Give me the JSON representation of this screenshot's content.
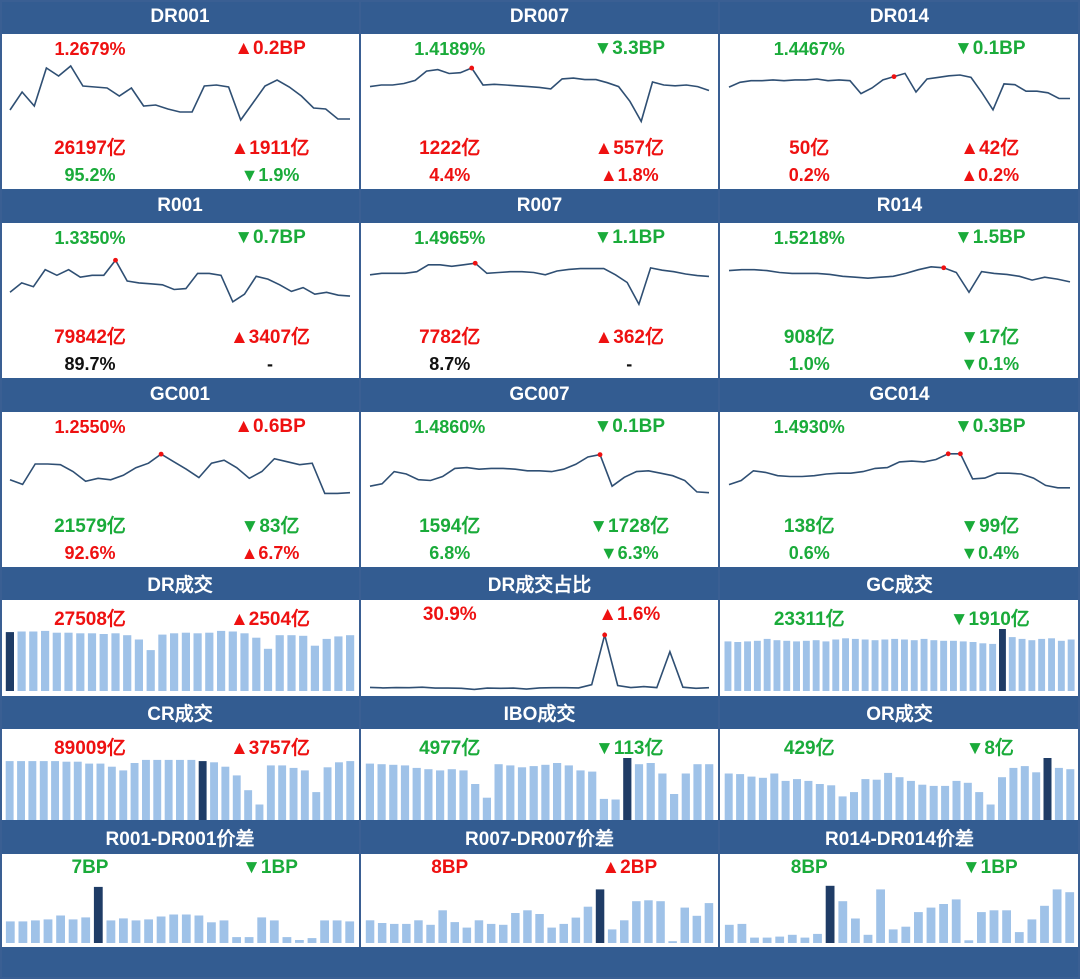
{
  "colors": {
    "header": "#335c91",
    "up": "#ee1111",
    "down": "#1aab3a",
    "line": "#2f4f73",
    "bar": "#9fc2e8",
    "bar_highlight": "#1f3c66"
  },
  "rate_panels": [
    {
      "title": "DR001",
      "rate": "1.2679%",
      "rate_color": "red",
      "rate_change": "▲0.2BP",
      "rate_change_color": "red",
      "volume": "26197亿",
      "volume_color": "red",
      "volume_change": "▲1911亿",
      "volume_change_color": "red",
      "share": "95.2%",
      "share_color": "green",
      "share_change": "▼1.9%",
      "share_change_color": "green",
      "chart_data": {
        "type": "line",
        "values": [
          1.36,
          1.45,
          1.38,
          1.57,
          1.53,
          1.58,
          1.48,
          1.475,
          1.47,
          1.43,
          1.47,
          1.38,
          1.385,
          1.365,
          1.35,
          1.35,
          1.48,
          1.485,
          1.475,
          1.31,
          1.395,
          1.48,
          1.51,
          1.475,
          1.43,
          1.37,
          1.365,
          1.315,
          1.315
        ],
        "ylim": [
          1.28,
          1.62
        ],
        "marker": null
      }
    },
    {
      "title": "DR007",
      "rate": "1.4189%",
      "rate_color": "green",
      "rate_change": "▼3.3BP",
      "rate_change_color": "green",
      "volume": "1222亿",
      "volume_color": "red",
      "volume_change": "▲557亿",
      "volume_change_color": "red",
      "share": "4.4%",
      "share_color": "red",
      "share_change": "▲1.8%",
      "share_change_color": "red",
      "chart_data": {
        "type": "line",
        "values": [
          1.535,
          1.545,
          1.545,
          1.555,
          1.575,
          1.635,
          1.645,
          1.62,
          1.625,
          1.655,
          1.545,
          1.55,
          1.545,
          1.54,
          1.535,
          1.53,
          1.52,
          1.585,
          1.59,
          1.58,
          1.58,
          1.56,
          1.535,
          1.44,
          1.31,
          1.565,
          1.545,
          1.54,
          1.545,
          1.535,
          1.51
        ],
        "ylim": [
          1.28,
          1.72
        ],
        "marker": 9
      }
    },
    {
      "title": "DR014",
      "rate": "1.4467%",
      "rate_color": "green",
      "rate_change": "▼0.1BP",
      "rate_change_color": "green",
      "volume": "50亿",
      "volume_color": "red",
      "volume_change": "▲42亿",
      "volume_change_color": "red",
      "share": "0.2%",
      "share_color": "red",
      "share_change": "▲0.2%",
      "share_change_color": "red",
      "chart_data": {
        "type": "line",
        "values": [
          1.58,
          1.61,
          1.62,
          1.62,
          1.625,
          1.62,
          1.625,
          1.625,
          1.63,
          1.62,
          1.625,
          1.62,
          1.54,
          1.575,
          1.625,
          1.645,
          1.665,
          1.55,
          1.63,
          1.64,
          1.65,
          1.655,
          1.64,
          1.545,
          1.44,
          1.6,
          1.595,
          1.555,
          1.555,
          1.545,
          1.51,
          1.51
        ],
        "ylim": [
          1.34,
          1.76
        ],
        "marker": 15
      }
    },
    {
      "title": "R001",
      "rate": "1.3350%",
      "rate_color": "green",
      "rate_change": "▼0.7BP",
      "rate_change_color": "green",
      "volume": "79842亿",
      "volume_color": "red",
      "volume_change": "▲3407亿",
      "volume_change_color": "red",
      "share": "89.7%",
      "share_color": "black",
      "share_change": "-",
      "share_change_color": "black",
      "chart_data": {
        "type": "line",
        "values": [
          1.38,
          1.43,
          1.41,
          1.5,
          1.47,
          1.5,
          1.46,
          1.47,
          1.47,
          1.55,
          1.44,
          1.43,
          1.425,
          1.42,
          1.395,
          1.4,
          1.48,
          1.48,
          1.47,
          1.33,
          1.37,
          1.465,
          1.45,
          1.42,
          1.385,
          1.405,
          1.37,
          1.38,
          1.365,
          1.36
        ],
        "ylim": [
          1.26,
          1.62
        ],
        "marker": 9
      }
    },
    {
      "title": "R007",
      "rate": "1.4965%",
      "rate_color": "green",
      "rate_change": "▼1.1BP",
      "rate_change_color": "green",
      "volume": "7782亿",
      "volume_color": "red",
      "volume_change": "▲362亿",
      "volume_change_color": "red",
      "share": "8.7%",
      "share_color": "black",
      "share_change": "-",
      "share_change_color": "black",
      "chart_data": {
        "type": "line",
        "values": [
          1.6,
          1.61,
          1.61,
          1.61,
          1.62,
          1.665,
          1.665,
          1.655,
          1.665,
          1.675,
          1.61,
          1.615,
          1.62,
          1.62,
          1.615,
          1.6,
          1.625,
          1.635,
          1.64,
          1.64,
          1.64,
          1.6,
          1.55,
          1.41,
          1.645,
          1.63,
          1.62,
          1.605,
          1.595,
          1.59
        ],
        "ylim": [
          1.34,
          1.78
        ],
        "marker": 9
      }
    },
    {
      "title": "R014",
      "rate": "1.5218%",
      "rate_color": "green",
      "rate_change": "▼1.5BP",
      "rate_change_color": "green",
      "volume": "908亿",
      "volume_color": "green",
      "volume_change": "▼17亿",
      "volume_change_color": "green",
      "share": "1.0%",
      "share_color": "green",
      "share_change": "▼0.1%",
      "share_change_color": "green",
      "chart_data": {
        "type": "line",
        "values": [
          1.675,
          1.68,
          1.68,
          1.675,
          1.665,
          1.66,
          1.66,
          1.66,
          1.655,
          1.645,
          1.64,
          1.635,
          1.64,
          1.645,
          1.66,
          1.68,
          1.695,
          1.69,
          1.665,
          1.56,
          1.67,
          1.66,
          1.655,
          1.645,
          1.625,
          1.64,
          1.63,
          1.615
        ],
        "ylim": [
          1.44,
          1.8
        ],
        "marker": 17
      }
    },
    {
      "title": "GC001",
      "rate": "1.2550%",
      "rate_color": "red",
      "rate_change": "▲0.6BP",
      "rate_change_color": "red",
      "volume": "21579亿",
      "volume_color": "green",
      "volume_change": "▼83亿",
      "volume_change_color": "green",
      "share": "92.6%",
      "share_color": "red",
      "share_change": "▲6.7%",
      "share_change_color": "red",
      "chart_data": {
        "type": "line",
        "values": [
          1.33,
          1.3,
          1.435,
          1.435,
          1.43,
          1.385,
          1.32,
          1.34,
          1.33,
          1.36,
          1.41,
          1.44,
          1.5,
          1.45,
          1.4,
          1.345,
          1.44,
          1.46,
          1.41,
          1.34,
          1.385,
          1.47,
          1.45,
          1.43,
          1.44,
          1.24,
          1.24,
          1.245
        ],
        "ylim": [
          1.17,
          1.62
        ],
        "marker": 12
      }
    },
    {
      "title": "GC007",
      "rate": "1.4860%",
      "rate_color": "green",
      "rate_change": "▼0.1BP",
      "rate_change_color": "green",
      "volume": "1594亿",
      "volume_color": "green",
      "volume_change": "▼1728亿",
      "volume_change_color": "green",
      "share": "6.8%",
      "share_color": "green",
      "share_change": "▼6.3%",
      "share_change_color": "green",
      "chart_data": {
        "type": "line",
        "values": [
          1.51,
          1.525,
          1.6,
          1.585,
          1.55,
          1.545,
          1.57,
          1.62,
          1.625,
          1.615,
          1.62,
          1.62,
          1.615,
          1.605,
          1.605,
          1.6,
          1.615,
          1.645,
          1.69,
          1.705,
          1.51,
          1.565,
          1.6,
          1.605,
          1.59,
          1.575,
          1.545,
          1.475,
          1.47
        ],
        "ylim": [
          1.4,
          1.82
        ],
        "marker": 19
      }
    },
    {
      "title": "GC014",
      "rate": "1.4930%",
      "rate_color": "green",
      "rate_change": "▼0.3BP",
      "rate_change_color": "green",
      "volume": "138亿",
      "volume_color": "green",
      "volume_change": "▼99亿",
      "volume_change_color": "green",
      "share": "0.6%",
      "share_color": "green",
      "share_change": "▼0.4%",
      "share_change_color": "green",
      "chart_data": {
        "type": "line",
        "values": [
          1.52,
          1.545,
          1.605,
          1.595,
          1.575,
          1.57,
          1.57,
          1.575,
          1.585,
          1.59,
          1.59,
          1.6,
          1.62,
          1.625,
          1.66,
          1.665,
          1.66,
          1.675,
          1.71,
          1.71,
          1.555,
          1.56,
          1.59,
          1.59,
          1.585,
          1.56,
          1.515,
          1.5,
          1.5
        ],
        "ylim": [
          1.4,
          1.82
        ],
        "marker": [
          18,
          19
        ]
      }
    }
  ],
  "volume_panels": [
    {
      "title": "DR成交",
      "value": "27508亿",
      "value_color": "red",
      "change": "▲2504亿",
      "change_color": "red",
      "chart_data": {
        "type": "bar",
        "values": [
          95,
          96,
          96,
          97,
          94,
          94,
          93,
          93,
          92,
          93,
          90,
          83,
          66,
          91,
          93,
          94,
          93,
          94,
          97,
          96,
          93,
          86,
          68,
          90,
          90,
          89,
          73,
          84,
          88,
          90
        ],
        "ylim": [
          0,
          100
        ],
        "highlight": 0
      }
    },
    {
      "title": "DR成交占比",
      "value": "30.9%",
      "value_color": "red",
      "change": "▲1.6%",
      "change_color": "red",
      "chart_data": {
        "type": "line",
        "values": [
          3.0,
          2.7,
          2.9,
          2.8,
          3.1,
          2.6,
          2.6,
          2.5,
          1.9,
          2.6,
          2.5,
          2.6,
          2.1,
          2.7,
          2.8,
          2.8,
          2.7,
          4.4,
          30.9,
          4.0,
          2.9,
          3.4,
          2.9,
          22.0,
          3.1,
          2.5,
          2.8
        ],
        "ylim": [
          0,
          33
        ],
        "marker": 18
      }
    },
    {
      "title": "GC成交",
      "value": "23311亿",
      "value_color": "green",
      "change": "▼1910亿",
      "change_color": "green",
      "chart_data": {
        "type": "bar",
        "values": [
          80,
          79,
          80,
          81,
          84,
          82,
          81,
          80,
          81,
          82,
          80,
          83,
          85,
          84,
          83,
          82,
          83,
          84,
          83,
          82,
          84,
          82,
          81,
          81,
          80,
          79,
          77,
          76,
          100,
          87,
          84,
          82,
          84,
          85,
          81,
          83
        ],
        "ylim": [
          0,
          100
        ],
        "highlight": 28
      }
    },
    {
      "title": "CR成交",
      "value": "89009亿",
      "value_color": "red",
      "change": "▲3757亿",
      "change_color": "red",
      "chart_data": {
        "type": "bar",
        "values": [
          95,
          95,
          95,
          95,
          95,
          94,
          94,
          91,
          91,
          86,
          80,
          92,
          97,
          97,
          97,
          97,
          97,
          95,
          93,
          86,
          72,
          48,
          25,
          88,
          88,
          84,
          80,
          45,
          85,
          93,
          95
        ],
        "ylim": [
          0,
          100
        ],
        "highlight": 17
      }
    },
    {
      "title": "IBO成交",
      "value": "4977亿",
      "value_color": "green",
      "change": "▼113亿",
      "change_color": "green",
      "chart_data": {
        "type": "bar",
        "values": [
          91,
          90,
          89,
          88,
          84,
          82,
          80,
          82,
          80,
          58,
          36,
          90,
          88,
          85,
          87,
          89,
          92,
          88,
          80,
          78,
          34,
          33,
          100,
          90,
          92,
          75,
          42,
          75,
          90,
          90
        ],
        "ylim": [
          0,
          100
        ],
        "highlight": 22
      }
    },
    {
      "title": "OR成交",
      "value": "429亿",
      "value_color": "green",
      "change": "▼8亿",
      "change_color": "green",
      "chart_data": {
        "type": "bar",
        "values": [
          75,
          74,
          70,
          68,
          75,
          63,
          66,
          63,
          58,
          56,
          38,
          45,
          66,
          65,
          76,
          69,
          63,
          57,
          55,
          55,
          63,
          60,
          45,
          25,
          69,
          84,
          87,
          77,
          100,
          84,
          82
        ],
        "ylim": [
          0,
          100
        ],
        "highlight": 28
      }
    }
  ],
  "spread_panels": [
    {
      "title": "R001-DR001价差",
      "value": "7BP",
      "value_color": "green",
      "change": "▼1BP",
      "change_color": "green",
      "chart_data": {
        "type": "bar",
        "values": [
          2.2,
          2.2,
          2.3,
          2.4,
          2.8,
          2.4,
          2.6,
          5.7,
          2.3,
          2.5,
          2.3,
          2.4,
          2.7,
          2.9,
          2.9,
          2.8,
          2.1,
          2.3,
          0.6,
          0.6,
          2.6,
          2.3,
          0.6,
          0.3,
          0.5,
          2.3,
          2.3,
          2.2
        ],
        "ylim": [
          0,
          6
        ],
        "highlight": 7
      }
    },
    {
      "title": "R007-DR007价差",
      "value": "8BP",
      "value_color": "red",
      "change": "▲2BP",
      "change_color": "red",
      "chart_data": {
        "type": "bar",
        "values": [
          2.5,
          2.2,
          2.1,
          2.1,
          2.5,
          2.0,
          3.6,
          2.3,
          1.7,
          2.5,
          2.1,
          2.0,
          3.3,
          3.6,
          3.2,
          1.7,
          2.1,
          2.8,
          4.0,
          5.9,
          1.5,
          2.5,
          4.6,
          4.7,
          4.6,
          0.2,
          3.9,
          3.0,
          4.4
        ],
        "ylim": [
          0,
          6.5
        ],
        "highlight": 19
      }
    },
    {
      "title": "R014-DR014价差",
      "value": "8BP",
      "value_color": "green",
      "change": "▼1BP",
      "change_color": "green",
      "chart_data": {
        "type": "bar",
        "values": [
          2.0,
          2.1,
          0.6,
          0.6,
          0.7,
          0.9,
          0.6,
          1.0,
          6.3,
          4.6,
          2.7,
          0.9,
          5.9,
          1.5,
          1.8,
          3.4,
          3.9,
          4.3,
          4.8,
          0.3,
          3.4,
          3.6,
          3.6,
          1.2,
          2.6,
          4.1,
          5.9,
          5.6
        ],
        "ylim": [
          0,
          6.5
        ],
        "highlight": 8
      }
    }
  ]
}
